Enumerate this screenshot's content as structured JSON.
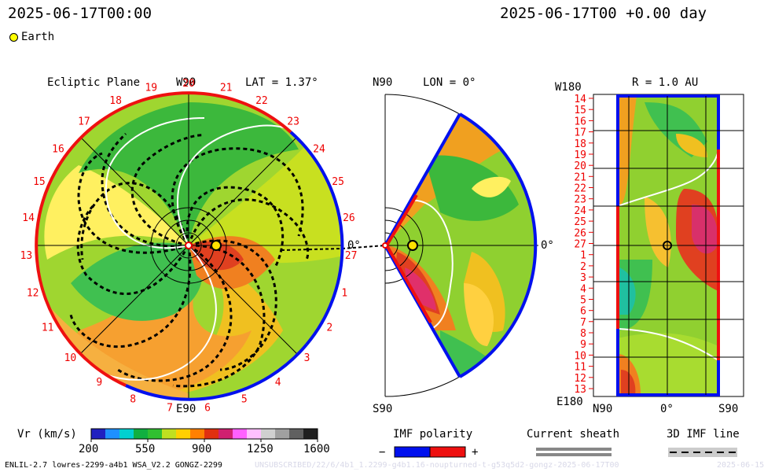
{
  "header": {
    "timestamp_left": "2025-06-17T00:00",
    "timestamp_right": "2025-06-17T00 +0.00 day"
  },
  "legend": {
    "earth_label": "Earth"
  },
  "ecliptic": {
    "title": "Ecliptic Plane",
    "top_label": "W90",
    "bottom_label": "E90",
    "lat_label": "LAT = 1.37°",
    "right_label": "0°",
    "rim_ticks": [
      "20",
      "21",
      "22",
      "23",
      "24",
      "25",
      "26",
      "27",
      "1",
      "2",
      "3",
      "4",
      "5",
      "6",
      "7",
      "8",
      "9",
      "10",
      "11",
      "12",
      "13",
      "14",
      "15",
      "16",
      "17",
      "18",
      "19"
    ]
  },
  "meridional": {
    "top_label": "N90",
    "bottom_label": "S90",
    "lon_label": "LON = 0°",
    "right_label": "0°"
  },
  "synoptic": {
    "corner_top": "W180",
    "corner_bottom": "E180",
    "r_label": "R = 1.0 AU",
    "x_labels": [
      "N90",
      "0°",
      "S90"
    ],
    "y_labels": [
      "14",
      "15",
      "16",
      "17",
      "18",
      "19",
      "20",
      "21",
      "22",
      "23",
      "24",
      "25",
      "26",
      "27",
      "1",
      "2",
      "3",
      "4",
      "5",
      "6",
      "7",
      "8",
      "9",
      "10",
      "11",
      "12",
      "13"
    ]
  },
  "colorbar": {
    "label": "Vr (km/s)",
    "ticks": [
      "200",
      "550",
      "900",
      "1250",
      "1600"
    ],
    "colors": [
      "#2020c0",
      "#1e90ff",
      "#00d0d0",
      "#10b040",
      "#30c030",
      "#c0e020",
      "#ffd000",
      "#ff8000",
      "#e03010",
      "#d02070",
      "#ff60ff",
      "#ffc0ff",
      "#d0d0d0",
      "#a0a0a0",
      "#606060",
      "#202020"
    ]
  },
  "imf": {
    "title": "IMF polarity",
    "minus": "−",
    "plus": "+",
    "negative_color": "#0010ee",
    "positive_color": "#ee1010"
  },
  "current_sheath": {
    "title": "Current sheath"
  },
  "imf_line": {
    "title": "3D IMF line"
  },
  "footer": {
    "model_info": "ENLIL-2.7 lowres-2299-a4b1 WSA_V2.2 GONGZ-2299",
    "run_info": "UNSUBSCRIBED/22/6/4b1_1.2299-g4b1.16-noupturned-t-g53q5d2-gongz-2025-06-17T00",
    "date_stub": "2025-06-15"
  }
}
